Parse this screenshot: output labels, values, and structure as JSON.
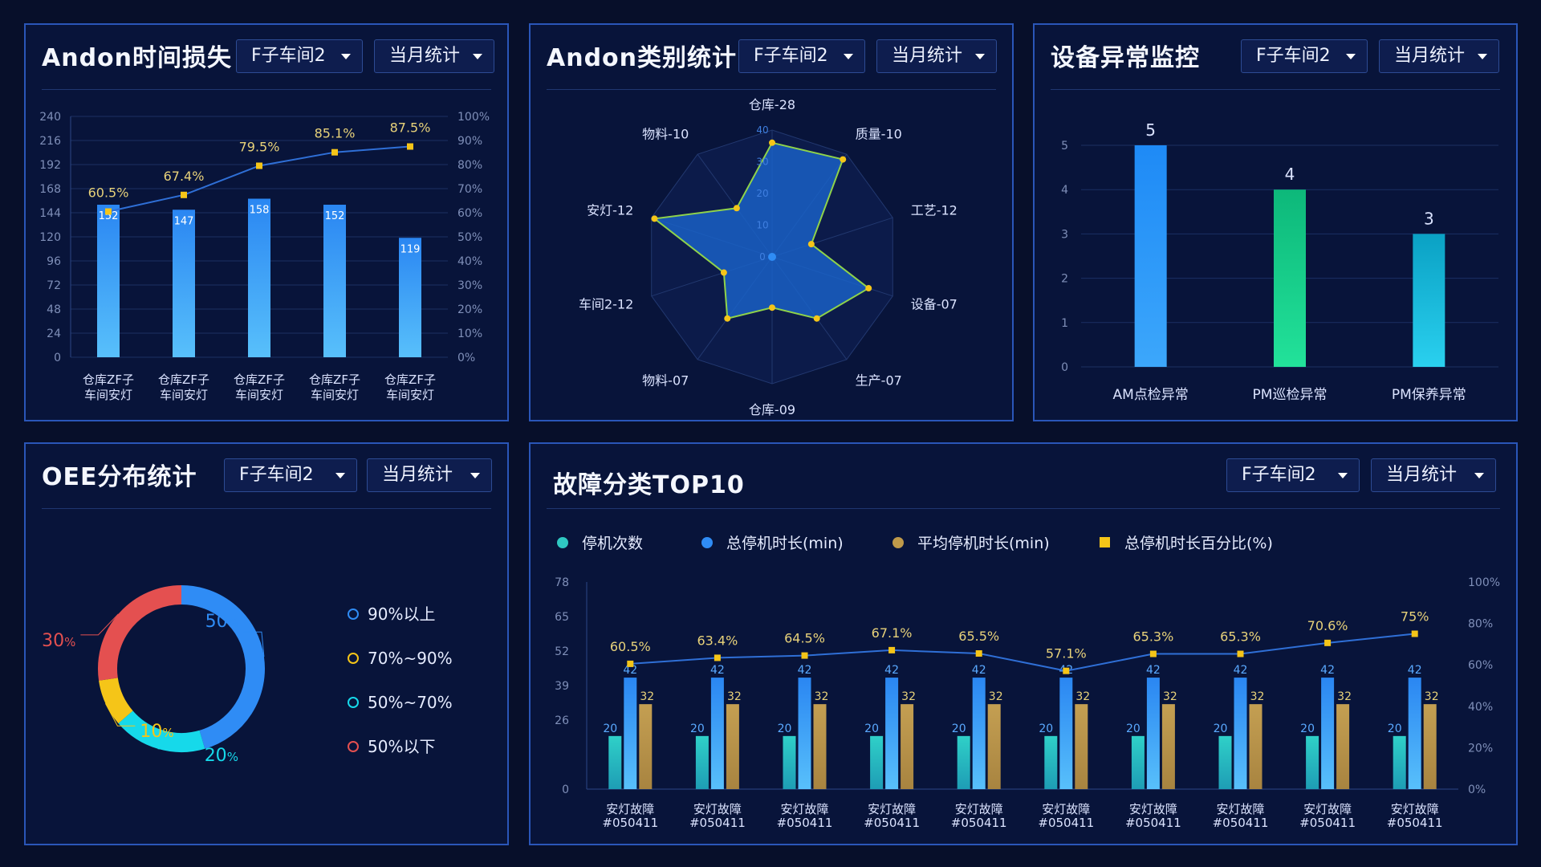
{
  "filters": {
    "workshop": "F子车间2",
    "period": "当月统计"
  },
  "panels": {
    "andon_time": {
      "title": "Andon时间损失"
    },
    "andon_category": {
      "title": "Andon类别统计"
    },
    "equipment": {
      "title": "设备异常监控"
    },
    "oee": {
      "title": "OEE分布统计"
    },
    "fault": {
      "title": "故障分类TOP10"
    }
  },
  "colors": {
    "bar_blue": "#2f8cf5",
    "line": "#2f6fd6",
    "marker": "#f5c518",
    "label_yellow": "#e8d27a",
    "green": "#19c98f",
    "cyan": "#1ab9d8",
    "teal": "#2fc8c2",
    "gold": "#bf9a4a",
    "red": "#e45050"
  },
  "chart_data": [
    {
      "id": "andon_time",
      "type": "bar",
      "categories": [
        "仓库ZF子车间安灯",
        "仓库ZF子车间安灯",
        "仓库ZF子车间安灯",
        "仓库ZF子车间安灯",
        "仓库ZF子车间安灯"
      ],
      "values": [
        152,
        147,
        158,
        152,
        119
      ],
      "line_values": [
        60.5,
        67.4,
        79.5,
        85.1,
        87.5
      ],
      "line_labels": [
        "60.5%",
        "67.4%",
        "79.5%",
        "85.1%",
        "87.5%"
      ],
      "y_ticks": [
        "240",
        "216",
        "192",
        "168",
        "144",
        "120",
        "96",
        "72",
        "48",
        "24",
        "0"
      ],
      "y2_ticks": [
        "100%",
        "90%",
        "80%",
        "70%",
        "60%",
        "50%",
        "40%",
        "30%",
        "20%",
        "10%",
        "0%"
      ],
      "ylim": [
        0,
        240
      ],
      "y2lim": [
        0,
        100
      ],
      "grid": true
    },
    {
      "id": "andon_category",
      "type": "radar",
      "labels": [
        "仓库-28",
        "质量-10",
        "工艺-12",
        "设备-07",
        "生产-07",
        "仓库-09",
        "物料-07",
        "车间2-12",
        "安灯-12",
        "物料-10"
      ],
      "values": [
        36,
        38,
        13,
        32,
        24,
        16,
        24,
        16,
        39,
        19
      ],
      "r_ticks": [
        "0",
        "10",
        "20",
        "30",
        "40"
      ],
      "rlim": [
        0,
        40
      ]
    },
    {
      "id": "equipment",
      "type": "bar",
      "categories": [
        "AM点检异常",
        "PM巡检异常",
        "PM保养异常"
      ],
      "values": [
        5,
        4,
        3
      ],
      "y_ticks": [
        "5",
        "4",
        "3",
        "2",
        "1",
        "0"
      ],
      "ylim": [
        0,
        5
      ],
      "grid": true
    },
    {
      "id": "oee",
      "type": "pie",
      "slices": [
        {
          "name": "90%以上",
          "value": 50,
          "label": "50",
          "unit": "%"
        },
        {
          "name": "50%~70%",
          "value": 20,
          "label": "20",
          "unit": "%"
        },
        {
          "name": "70%~90%",
          "value": 10,
          "label": "10",
          "unit": "%"
        },
        {
          "name": "50%以下",
          "value": 30,
          "label": "30",
          "unit": "%"
        }
      ],
      "legend": [
        "90%以上",
        "70%~90%",
        "50%~70%",
        "50%以下"
      ]
    },
    {
      "id": "fault",
      "type": "bar",
      "legend": [
        "停机次数",
        "总停机时长(min)",
        "平均停机时长(min)",
        "总停机时长百分比(%)"
      ],
      "categories": [
        "安灯故障 #050411",
        "安灯故障 #050411",
        "安灯故障 #050411",
        "安灯故障 #050411",
        "安灯故障 #050411",
        "安灯故障 #050411",
        "安灯故障 #050411",
        "安灯故障 #050411",
        "安灯故障 #050411",
        "安灯故障 #050411"
      ],
      "series": [
        {
          "name": "停机次数",
          "values": [
            20,
            20,
            20,
            20,
            20,
            20,
            20,
            20,
            20,
            20
          ]
        },
        {
          "name": "总停机时长(min)",
          "values": [
            42,
            42,
            42,
            42,
            42,
            42,
            42,
            42,
            42,
            42
          ]
        },
        {
          "name": "平均停机时长(min)",
          "values": [
            32,
            32,
            32,
            32,
            32,
            32,
            32,
            32,
            32,
            32
          ]
        }
      ],
      "line_series": {
        "name": "总停机时长百分比(%)",
        "values": [
          60.5,
          63.4,
          64.5,
          67.1,
          65.5,
          57.1,
          65.3,
          65.3,
          70.6,
          75
        ]
      },
      "line_labels": [
        "60.5%",
        "63.4%",
        "64.5%",
        "67.1%",
        "65.5%",
        "57.1%",
        "65.3%",
        "65.3%",
        "70.6%",
        "75%"
      ],
      "y_ticks": [
        "78",
        "65",
        "52",
        "39",
        "26",
        "0"
      ],
      "y2_ticks": [
        "100%",
        "80%",
        "60%",
        "40%",
        "20%",
        "0%"
      ],
      "ylim": [
        0,
        78
      ],
      "y2lim": [
        0,
        100
      ],
      "grid": true
    }
  ]
}
